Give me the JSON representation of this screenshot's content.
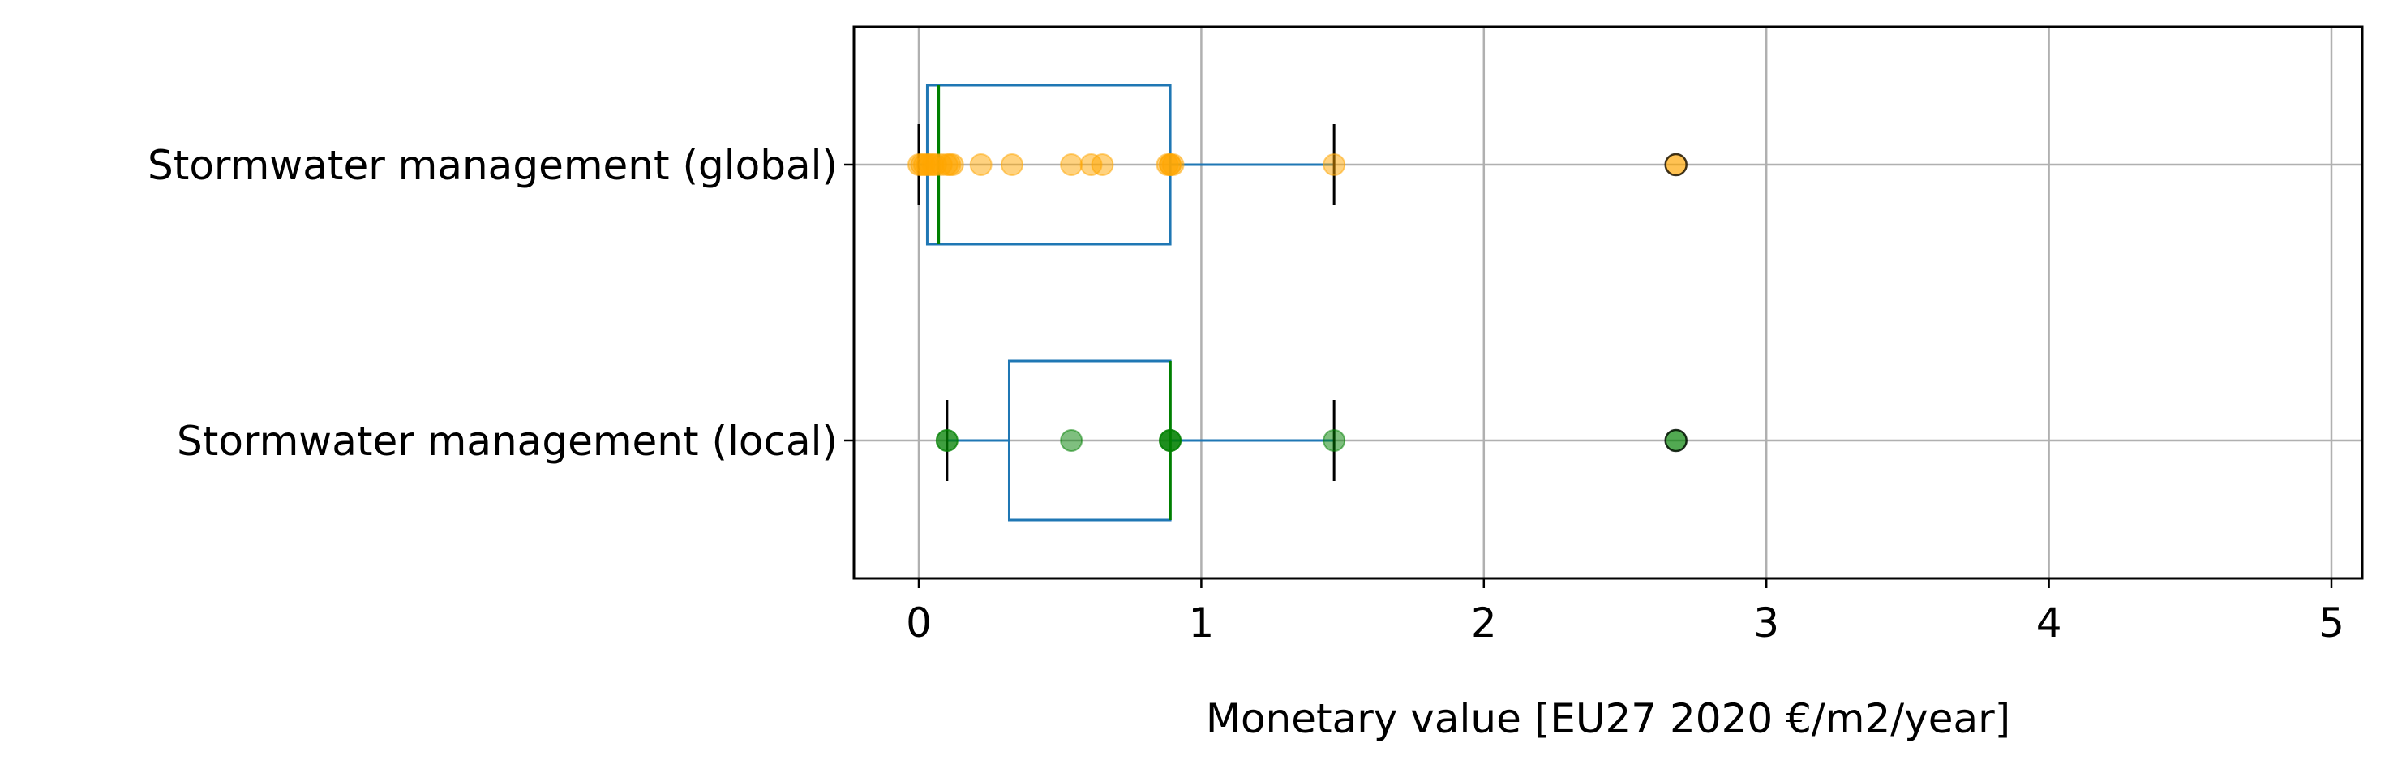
{
  "chart_data": {
    "type": "boxplot",
    "orientation": "horizontal",
    "title": "",
    "xlabel": "Monetary value [EU27 2020 €/m2/year]",
    "ylabel": "",
    "xlim": [
      -0.23,
      5.12
    ],
    "xticks": [
      0,
      1,
      2,
      3,
      4,
      5
    ],
    "xtick_labels": [
      "0",
      "1",
      "2",
      "3",
      "4",
      "5"
    ],
    "grid": true,
    "categories": [
      "Stormwater management (global)",
      "Stormwater management (local)"
    ],
    "boxes": [
      {
        "category": "Stormwater management (global)",
        "whisker_low": 0.0,
        "q1": 0.03,
        "median": 0.07,
        "q3": 0.89,
        "whisker_high": 1.47,
        "outliers": [
          2.68
        ],
        "point_color": "#ffa500",
        "points": [
          0.0,
          0.01,
          0.02,
          0.03,
          0.04,
          0.05,
          0.06,
          0.08,
          0.1,
          0.11,
          0.12,
          0.22,
          0.33,
          0.54,
          0.61,
          0.65,
          0.88,
          0.89,
          0.89,
          0.9,
          1.47,
          2.68
        ]
      },
      {
        "category": "Stormwater management (local)",
        "whisker_low": 0.1,
        "q1": 0.32,
        "median": 0.89,
        "q3": 0.89,
        "whisker_high": 1.47,
        "outliers": [
          2.68
        ],
        "point_color": "#008000",
        "points": [
          0.1,
          0.1,
          0.54,
          0.89,
          0.89,
          0.89,
          1.47,
          2.68
        ]
      }
    ],
    "colors": {
      "box": "#1f77b4",
      "median": "#008000",
      "whisker_cap": "#000000",
      "grid": "#b0b0b0"
    }
  }
}
